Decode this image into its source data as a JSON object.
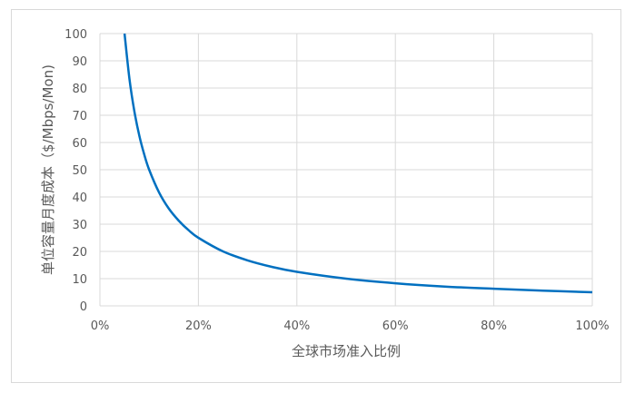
{
  "chart_data": {
    "type": "line",
    "title": "",
    "xlabel": "全球市场准入比例",
    "ylabel": "单位容量月度成本（$/Mbps/Mon)",
    "xlim": [
      0,
      100
    ],
    "ylim": [
      0,
      100
    ],
    "x_tick_labels": [
      "0%",
      "20%",
      "40%",
      "60%",
      "80%",
      "100%"
    ],
    "y_tick_labels": [
      "0",
      "10",
      "20",
      "30",
      "40",
      "50",
      "60",
      "70",
      "80",
      "90",
      "100"
    ],
    "grid": true,
    "legend": "none",
    "series": [
      {
        "color": "#0070c0",
        "x": [
          5,
          6,
          7,
          8,
          9,
          10,
          12,
          14,
          16,
          18,
          20,
          25,
          30,
          35,
          40,
          50,
          60,
          70,
          80,
          90,
          100
        ],
        "y": [
          100,
          83.3,
          71.4,
          62.5,
          55.6,
          50,
          41.7,
          35.7,
          31.3,
          27.8,
          25,
          20,
          16.7,
          14.3,
          12.5,
          10,
          8.3,
          7.1,
          6.3,
          5.6,
          5
        ]
      }
    ]
  }
}
